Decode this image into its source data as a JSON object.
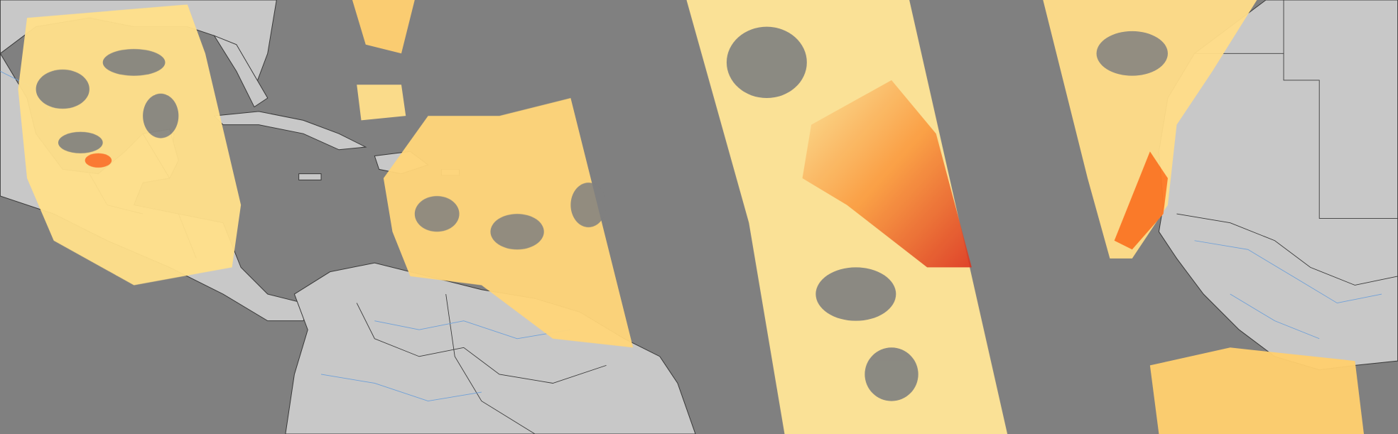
{
  "map": {
    "colors": {
      "ocean": "#808080",
      "land": "#c8c8c8",
      "borders": "#3a3a3a",
      "rivers": "#6fa0d8",
      "value_low": "#fff2b0",
      "value_mid": "#ffcc66",
      "value_high": "#ff7a20",
      "value_max": "#d4101a"
    },
    "layers": [
      "land",
      "country-borders",
      "rivers",
      "satellite-swaths"
    ]
  }
}
